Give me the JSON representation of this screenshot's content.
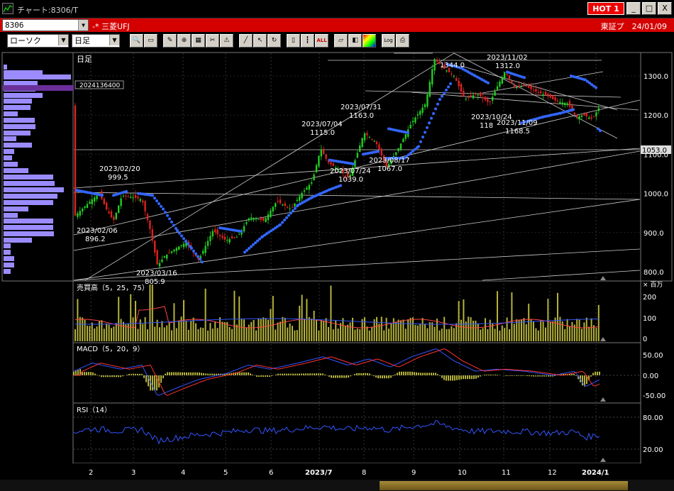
{
  "window": {
    "title": "チャート:8306/T",
    "hot_label": "HOT 1",
    "min_label": "_",
    "max_label": "□",
    "close_label": "X"
  },
  "bar1": {
    "code": "8306",
    "stock_name": "-* 三菱UFJ",
    "exchange_date": "東証プ　24/01/09"
  },
  "bar2": {
    "chart_type": "ローソク",
    "period": "日足"
  },
  "toolbar": {
    "icons": [
      "search-icon",
      "window-icon",
      "drawing-icon",
      "zoom-icon",
      "grid-icon",
      "scissors-icon",
      "alert-icon",
      "line-icon",
      "cursor-icon",
      "rotate-icon",
      "candle-icon",
      "bars-icon",
      "all-icon",
      "ruler-icon",
      "fill-icon",
      "color-icon",
      "log-icon",
      "print-icon"
    ],
    "all_label": "ALL",
    "log_label": "Log"
  },
  "main": {
    "label": "日足",
    "volume_profile_value": "2024136400",
    "price_axis": [
      "1300.0",
      "1200.0",
      "1100.0",
      "1000.0",
      "900.0",
      "800.0"
    ],
    "current_price_tag": "1053.0",
    "annotations": [
      {
        "date": "2023/02/20",
        "value": "999.5"
      },
      {
        "date": "2023/02/06",
        "value": "896.2"
      },
      {
        "date": "2023/03/16",
        "value": "805.9"
      },
      {
        "date": "2023/07/04",
        "value": "1115.0"
      },
      {
        "date": "2023/07/31",
        "value": "1163.0"
      },
      {
        "date": "2023/07/24",
        "value": "1039.0"
      },
      {
        "date": "2023/08/17",
        "value": "1067.0"
      },
      {
        "date": "",
        "value": "1344.0"
      },
      {
        "date": "2023/11/02",
        "value": "1312.0"
      },
      {
        "date": "2023/10/24",
        "value": "118"
      },
      {
        "date": "2023/11/09",
        "value": "1168.5"
      }
    ]
  },
  "volume": {
    "label": "売買高（5，25，75）",
    "unit": "× 百万",
    "axis": [
      "200",
      "100",
      "0"
    ]
  },
  "macd": {
    "label": "MACD（5，20，9）",
    "axis": [
      "50.00",
      "0.00",
      "-50.00"
    ]
  },
  "rsi": {
    "label": "RSI（14）",
    "axis": [
      "80.00",
      "20.00"
    ]
  },
  "xaxis": {
    "labels": [
      "2",
      "3",
      "4",
      "5",
      "6",
      "2023/7",
      "8",
      "9",
      "10",
      "11",
      "12",
      "2024/1"
    ]
  },
  "colors": {
    "titlebar": "#000000",
    "codebar": "#d40000",
    "up_candle": "#22cc22",
    "down_candle": "#dd2222",
    "sar": "#3366ff",
    "volume": "#b5b23a",
    "macd_line": "#3355ff",
    "signal_line": "#ff3333",
    "rsi_line": "#3355ff",
    "profile": "#9a8cff",
    "profile_highlight": "#6a2f9a"
  }
}
